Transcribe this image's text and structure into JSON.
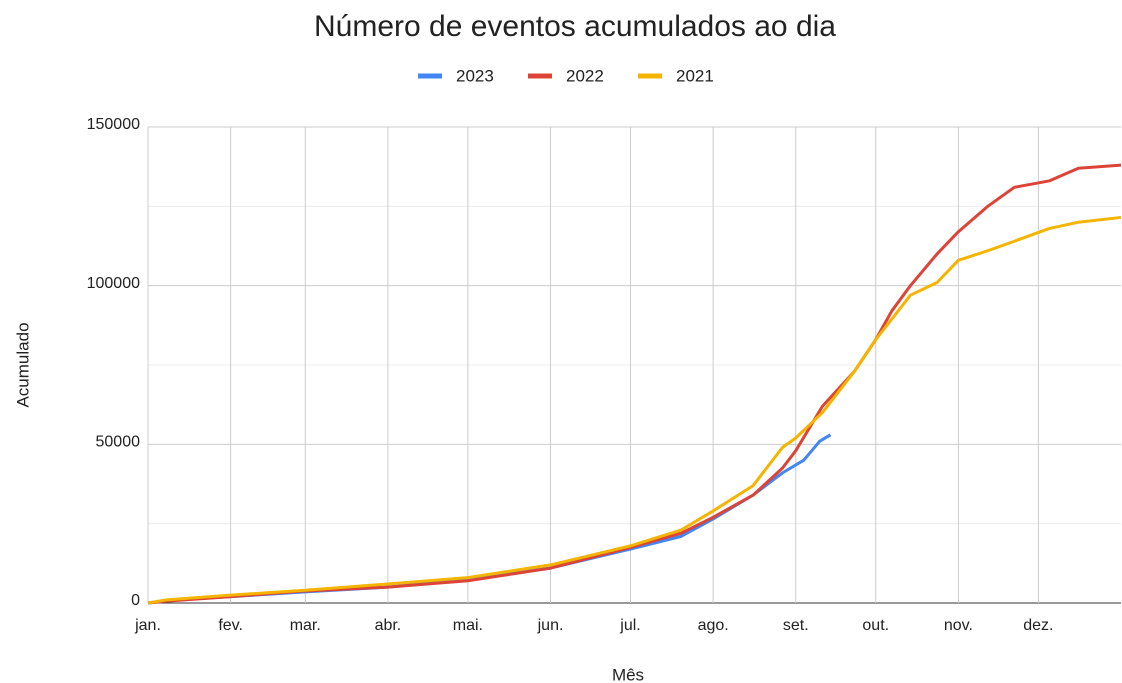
{
  "chart_data": {
    "type": "line",
    "title": "Número de eventos acumulados ao dia",
    "x_label": "Mês",
    "y_label": "Acumulado",
    "xlim": [
      0,
      365
    ],
    "ylim": [
      0,
      150000
    ],
    "yticks": [
      0,
      50000,
      100000,
      150000
    ],
    "minor_yticks": [
      25000,
      75000,
      125000
    ],
    "xticks": [
      {
        "value": 0,
        "label": "jan."
      },
      {
        "value": 31,
        "label": "fev."
      },
      {
        "value": 59,
        "label": "mar."
      },
      {
        "value": 90,
        "label": "abr."
      },
      {
        "value": 120,
        "label": "mai."
      },
      {
        "value": 151,
        "label": "jun."
      },
      {
        "value": 181,
        "label": "jul."
      },
      {
        "value": 212,
        "label": "ago."
      },
      {
        "value": 243,
        "label": "set."
      },
      {
        "value": 273,
        "label": "out."
      },
      {
        "value": 304,
        "label": "nov."
      },
      {
        "value": 334,
        "label": "dez."
      }
    ],
    "grid": true,
    "legend": "top",
    "series": [
      {
        "name": "2023",
        "color": "#4285f4",
        "x": [
          0,
          7,
          31,
          59,
          90,
          120,
          151,
          181,
          200,
          212,
          227,
          238,
          246,
          252,
          256
        ],
        "values": [
          0,
          800,
          2000,
          3500,
          5000,
          7500,
          11000,
          17000,
          21000,
          26500,
          34000,
          41000,
          45000,
          51000,
          53000
        ]
      },
      {
        "name": "2022",
        "color": "#db4437",
        "x": [
          0,
          7,
          31,
          59,
          90,
          120,
          151,
          181,
          200,
          212,
          227,
          238,
          243,
          253,
          265,
          273,
          279,
          286,
          296,
          304,
          315,
          325,
          338,
          349,
          365
        ],
        "values": [
          0,
          600,
          2000,
          3800,
          5000,
          7000,
          11000,
          17500,
          22000,
          27000,
          34000,
          42500,
          48000,
          62000,
          73000,
          83000,
          92000,
          100000,
          110000,
          117000,
          125000,
          131000,
          133000,
          137000,
          138000
        ]
      },
      {
        "name": "2021",
        "color": "#f4b400",
        "x": [
          0,
          7,
          31,
          59,
          90,
          120,
          151,
          181,
          200,
          212,
          227,
          238,
          243,
          253,
          265,
          273,
          286,
          296,
          304,
          315,
          325,
          338,
          349,
          365
        ],
        "values": [
          0,
          1000,
          2500,
          4000,
          6000,
          8000,
          12000,
          18000,
          23000,
          29000,
          37000,
          49000,
          52000,
          60000,
          73000,
          83000,
          97000,
          101000,
          108000,
          111000,
          114000,
          118000,
          120000,
          121500
        ]
      }
    ]
  }
}
